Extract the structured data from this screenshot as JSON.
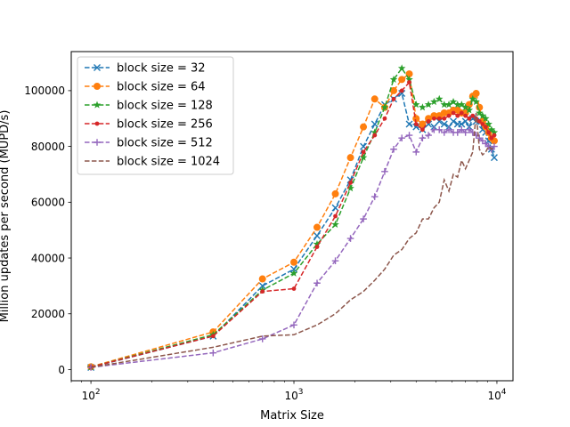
{
  "chart_data": {
    "type": "line",
    "xlabel": "Matrix Size",
    "ylabel": "Million updates per second (MUPD/s)",
    "xscale": "log",
    "xlim": [
      80,
      12000
    ],
    "ylim": [
      -4000,
      114000
    ],
    "x_ticks": [
      {
        "value": 100,
        "base": "10",
        "exp": "2"
      },
      {
        "value": 1000,
        "base": "10",
        "exp": "3"
      },
      {
        "value": 10000,
        "base": "10",
        "exp": "4"
      }
    ],
    "y_ticks": [
      {
        "value": 0,
        "label": "0"
      },
      {
        "value": 20000,
        "label": "20000"
      },
      {
        "value": 40000,
        "label": "40000"
      },
      {
        "value": 60000,
        "label": "60000"
      },
      {
        "value": 80000,
        "label": "80000"
      },
      {
        "value": 100000,
        "label": "100000"
      }
    ],
    "grid": false,
    "legend_position": "top-left",
    "series": [
      {
        "name": "block size = 32",
        "color": "#1f77b4",
        "marker": "x",
        "x": [
          100,
          400,
          700,
          1000,
          1300,
          1600,
          1900,
          2200,
          2500,
          2800,
          3100,
          3400,
          3700,
          4000,
          4300,
          4600,
          4900,
          5200,
          5500,
          5800,
          6100,
          6400,
          6700,
          7000,
          7300,
          7600,
          7900,
          8200,
          8500,
          8800,
          9100,
          9400,
          9700
        ],
        "y": [
          800,
          12000,
          30000,
          36000,
          48000,
          58000,
          68000,
          80000,
          88000,
          95000,
          97000,
          99000,
          88000,
          87000,
          86000,
          88000,
          87000,
          89000,
          88000,
          87000,
          89000,
          88000,
          88000,
          89000,
          87000,
          90000,
          89000,
          89000,
          86000,
          85000,
          82000,
          79000,
          76000
        ]
      },
      {
        "name": "block size = 64",
        "color": "#ff7f0e",
        "marker": "o",
        "x": [
          100,
          400,
          700,
          1000,
          1300,
          1600,
          1900,
          2200,
          2500,
          2800,
          3100,
          3400,
          3700,
          4000,
          4300,
          4600,
          4900,
          5200,
          5500,
          5800,
          6100,
          6400,
          6700,
          7000,
          7300,
          7600,
          7900,
          8200,
          8500,
          8800,
          9100,
          9400,
          9700
        ],
        "y": [
          1000,
          13500,
          32500,
          38500,
          51000,
          63000,
          76000,
          87000,
          97000,
          94000,
          100000,
          104000,
          106000,
          90000,
          88000,
          90000,
          91000,
          91000,
          92000,
          92000,
          93000,
          93000,
          92000,
          92000,
          95000,
          98000,
          99000,
          94000,
          89000,
          87000,
          85000,
          83000,
          82000
        ]
      },
      {
        "name": "block size = 128",
        "color": "#2ca02c",
        "marker": "star",
        "x": [
          100,
          400,
          700,
          1000,
          1300,
          1600,
          1900,
          2200,
          2500,
          2800,
          3100,
          3400,
          3700,
          4000,
          4300,
          4600,
          4900,
          5200,
          5500,
          5800,
          6100,
          6400,
          6700,
          7000,
          7300,
          7600,
          7900,
          8200,
          8500,
          8800,
          9100,
          9400,
          9700
        ],
        "y": [
          900,
          12500,
          28500,
          34500,
          45000,
          52000,
          65000,
          76000,
          85000,
          94000,
          104000,
          108000,
          104000,
          95000,
          94000,
          95000,
          96000,
          97000,
          95000,
          95000,
          96000,
          95000,
          95000,
          94000,
          93000,
          97000,
          96000,
          92000,
          91000,
          90000,
          88000,
          86000,
          85000
        ]
      },
      {
        "name": "block size = 256",
        "color": "#d62728",
        "marker": "dot",
        "x": [
          100,
          400,
          700,
          1000,
          1300,
          1600,
          1900,
          2200,
          2500,
          2800,
          3100,
          3400,
          3700,
          4000,
          4300,
          4600,
          4900,
          5200,
          5500,
          5800,
          6100,
          6400,
          6700,
          7000,
          7300,
          7600,
          7900,
          8200,
          8500,
          8800,
          9100,
          9400,
          9700
        ],
        "y": [
          900,
          12000,
          28000,
          29000,
          44000,
          55000,
          67000,
          78000,
          84000,
          90000,
          97000,
          100000,
          103000,
          88000,
          86000,
          89000,
          90000,
          90000,
          90000,
          91000,
          92000,
          91000,
          92000,
          91000,
          90000,
          91000,
          90000,
          89000,
          88000,
          87000,
          85000,
          83000,
          84000
        ]
      },
      {
        "name": "block size = 512",
        "color": "#9467bd",
        "marker": "plus",
        "x": [
          100,
          400,
          700,
          1000,
          1300,
          1600,
          1900,
          2200,
          2500,
          2800,
          3100,
          3400,
          3700,
          4000,
          4300,
          4600,
          4900,
          5200,
          5500,
          5800,
          6100,
          6400,
          6700,
          7000,
          7300,
          7600,
          7900,
          8200,
          8500,
          8800,
          9100,
          9400,
          9700
        ],
        "y": [
          800,
          6000,
          11000,
          16000,
          31000,
          39000,
          47000,
          54000,
          62000,
          71000,
          79000,
          83000,
          84000,
          78000,
          83000,
          84000,
          86000,
          86000,
          85000,
          86000,
          85000,
          85000,
          86000,
          85000,
          86000,
          85000,
          84000,
          83000,
          82000,
          81000,
          80000,
          79000,
          80000
        ]
      },
      {
        "name": "block size = 1024",
        "color": "#8c564b",
        "marker": "none",
        "x": [
          100,
          400,
          700,
          1000,
          1300,
          1600,
          1900,
          2200,
          2500,
          2800,
          3100,
          3400,
          3700,
          4000,
          4300,
          4600,
          4900,
          5200,
          5500,
          5800,
          6100,
          6400,
          6700,
          7000,
          7300,
          7600,
          7900,
          8200,
          8500,
          8800,
          9100,
          9400,
          9700
        ],
        "y": [
          800,
          8000,
          12000,
          12500,
          16000,
          20000,
          25000,
          28000,
          32000,
          36000,
          41000,
          43000,
          47000,
          49000,
          54000,
          54000,
          58000,
          60000,
          68000,
          64000,
          70000,
          69000,
          75000,
          72000,
          75000,
          78000,
          92000,
          79000,
          77000,
          78000,
          80000,
          79000,
          80000
        ]
      }
    ]
  }
}
